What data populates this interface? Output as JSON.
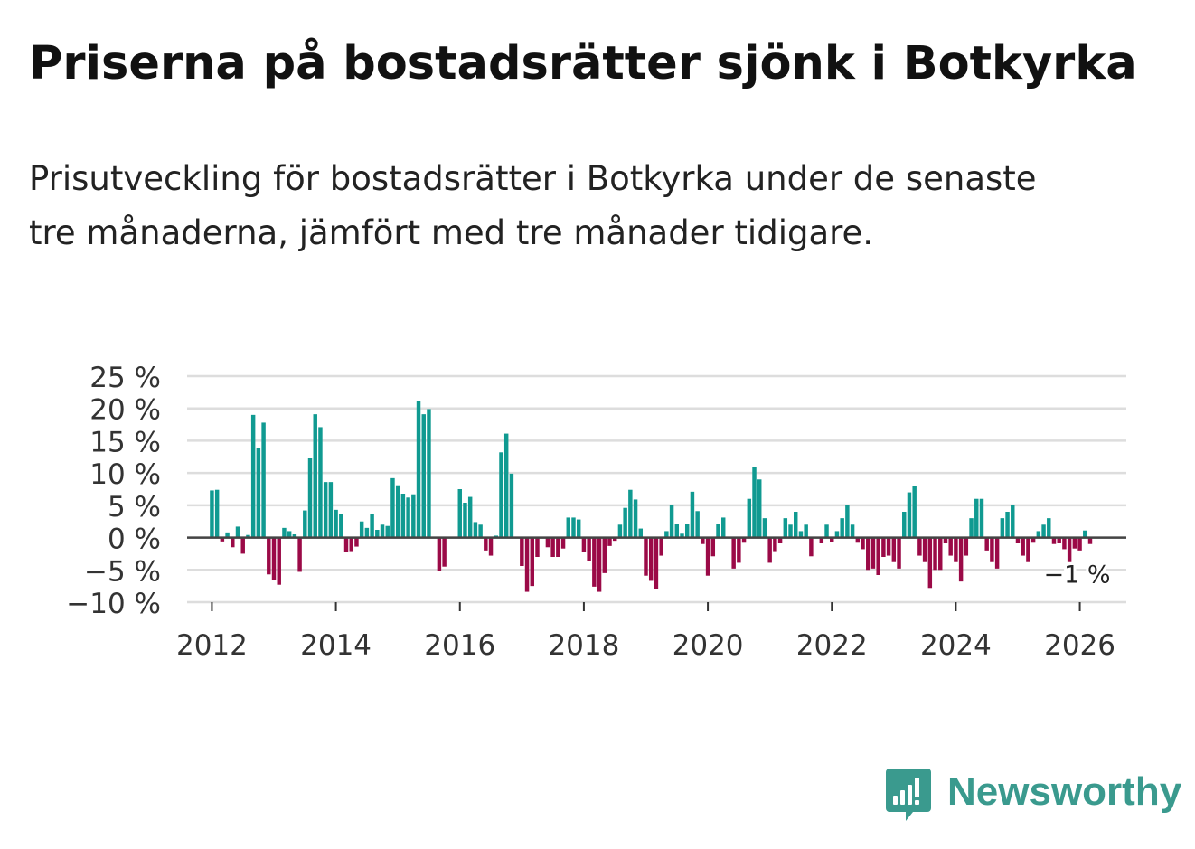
{
  "title": "Priserna på bostadsrätter sjönk i Botkyrka",
  "subtitle": "Prisutveckling för bostadsrätter i Botkyrka under de senaste tre månaderna, jämfört med tre månader tidigare.",
  "brand": {
    "name": "Newsworthy",
    "icon": "newsworthy-bar-chart-logo-icon",
    "color": "#3a9a8e"
  },
  "colors": {
    "positive": "#109a91",
    "negative": "#9b0a47",
    "grid": "#dddddd",
    "zero_line": "#444444"
  },
  "chart_data": {
    "type": "bar",
    "title": "",
    "xlabel": "",
    "ylabel": "",
    "unit": "%",
    "ylim": [
      -10,
      25
    ],
    "yticks": [
      25,
      20,
      15,
      10,
      5,
      0,
      -5,
      -10
    ],
    "ytick_labels": [
      "25 %",
      "20 %",
      "15 %",
      "10 %",
      "5 %",
      "0 %",
      "−5 %",
      "−10 %"
    ],
    "xlim": [
      2011.6,
      2026.75
    ],
    "xticks": [
      2012,
      2014,
      2016,
      2018,
      2020,
      2022,
      2024,
      2026
    ],
    "xtick_labels": [
      "2012",
      "2014",
      "2016",
      "2018",
      "2020",
      "2022",
      "2024",
      "2026"
    ],
    "grid": true,
    "start_year": 2012,
    "start_month": 1,
    "values": [
      7.3,
      7.4,
      -0.6,
      0.8,
      -1.5,
      1.7,
      -2.5,
      0.4,
      19,
      13.8,
      17.8,
      -5.7,
      -6.5,
      -7.3,
      1.5,
      1,
      0.5,
      -5.3,
      4.2,
      12.3,
      19.1,
      17.1,
      8.6,
      8.6,
      4.3,
      3.7,
      -2.3,
      -2.1,
      -1.4,
      2.5,
      1.5,
      3.7,
      1.2,
      2,
      1.8,
      9.2,
      8.1,
      6.8,
      6.2,
      6.7,
      21.2,
      19.1,
      19.9,
      0,
      -5.2,
      -4.5,
      0,
      0,
      7.5,
      5.4,
      6.3,
      2.4,
      2,
      -2,
      -2.8,
      0.3,
      13.2,
      16.1,
      9.9,
      0,
      -4.4,
      -8.4,
      -7.5,
      -3,
      0,
      -1.5,
      -3,
      -3,
      -1.7,
      3.1,
      3.1,
      2.8,
      -2.3,
      -3.6,
      -7.6,
      -8.4,
      -5.5,
      -1.3,
      -0.5,
      2,
      4.6,
      7.4,
      5.9,
      1.4,
      -5.9,
      -6.7,
      -7.9,
      -2.8,
      1,
      5,
      2.1,
      0.6,
      2.1,
      7.1,
      4.1,
      -1,
      -5.9,
      -2.9,
      2.1,
      3.1,
      0,
      -4.8,
      -3.9,
      -0.8,
      6,
      11,
      9,
      3,
      -3.9,
      -2.1,
      -0.9,
      3,
      2,
      4,
      1,
      2,
      -2.9,
      0,
      -0.9,
      2,
      -0.7,
      1,
      3,
      5,
      2,
      -0.8,
      -1.8,
      -5,
      -4.8,
      -5.8,
      -3,
      -2.8,
      -3.8,
      -4.8,
      4,
      7,
      8,
      -2.8,
      -3.8,
      -7.8,
      -5,
      -5,
      -0.9,
      -2.8,
      -3.8,
      -6.8,
      -2.8,
      3,
      6,
      6,
      -2,
      -3.8,
      -4.8,
      3,
      4,
      5,
      -0.9,
      -2.8,
      -3.8,
      -0.8,
      1,
      2,
      3,
      -1,
      -0.9,
      -1.8,
      -3.8,
      -1.7,
      -2,
      1.1,
      -1
    ],
    "annotations": [
      {
        "label": "−1 %",
        "x": 2026,
        "y": -1
      }
    ]
  }
}
